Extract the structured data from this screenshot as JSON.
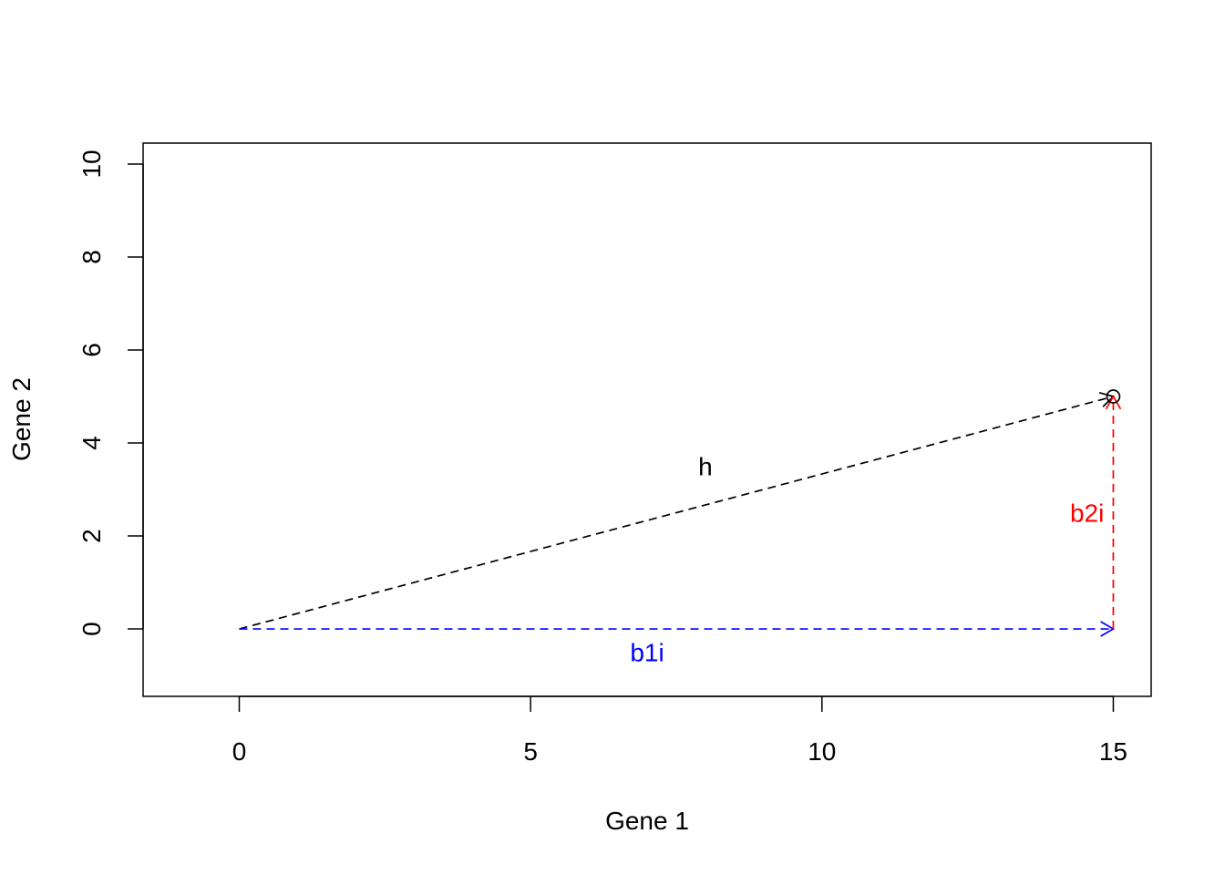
{
  "chart_data": {
    "type": "scatter",
    "xlabel": "Gene 1",
    "ylabel": "Gene 2",
    "xlim": [
      -1.65,
      15.65
    ],
    "ylim": [
      -1.45,
      10.45
    ],
    "x_ticks": [
      0,
      5,
      10,
      15
    ],
    "y_ticks": [
      0,
      2,
      4,
      6,
      8,
      10
    ],
    "grid": false,
    "points": [
      {
        "x": 15,
        "y": 5,
        "marker": "open-circle"
      }
    ],
    "arrows": [
      {
        "label": "h",
        "from": [
          0,
          0
        ],
        "to": [
          15,
          5
        ],
        "color": "#000000",
        "dashed": true,
        "label_at": [
          8,
          3.45
        ]
      },
      {
        "label": "b1i",
        "from": [
          0,
          0
        ],
        "to": [
          15,
          0
        ],
        "color": "#0000FF",
        "dashed": true,
        "label_at": [
          7,
          -0.55
        ]
      },
      {
        "label": "b2i",
        "from": [
          15,
          0
        ],
        "to": [
          15,
          5
        ],
        "color": "#FF0000",
        "dashed": true,
        "label_at": [
          14.55,
          2.45
        ]
      }
    ]
  }
}
